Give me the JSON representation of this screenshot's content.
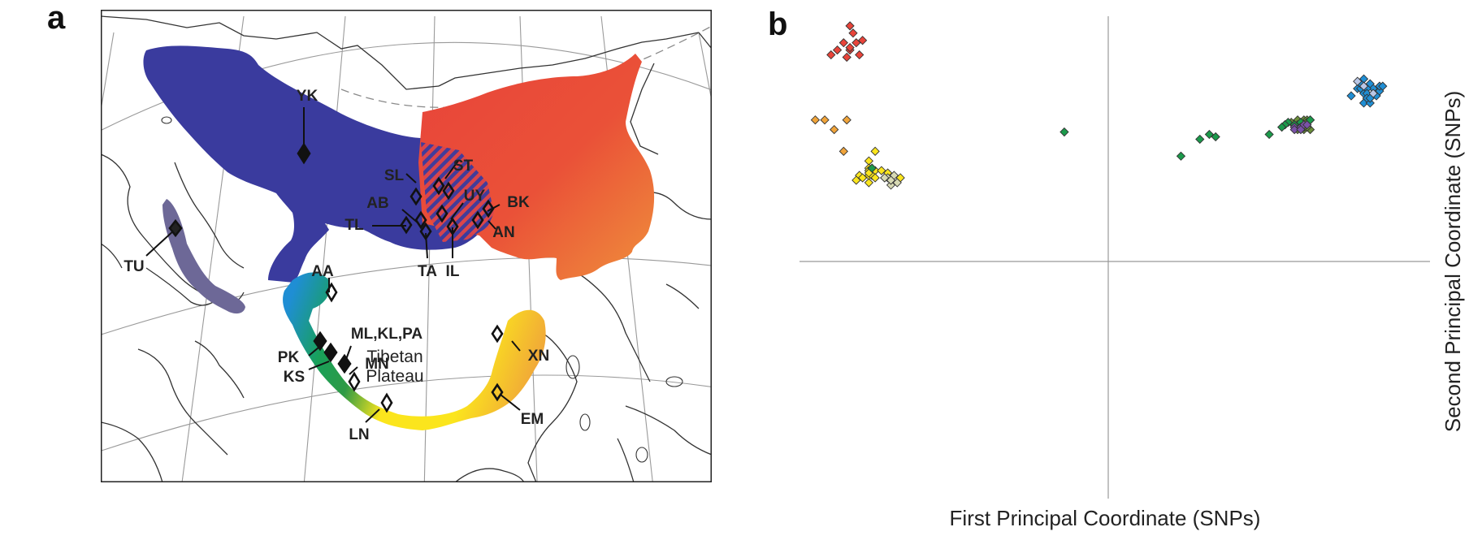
{
  "panels": {
    "a": "a",
    "b": "b"
  },
  "map": {
    "region_label": [
      "Tibetan",
      "Plateau"
    ],
    "colors": {
      "north": "#3a3b9e",
      "east": "#e8443a",
      "east_south": "#ef8a3c",
      "americas": "#6d6897",
      "west": "#1f8ed4",
      "green": "#1b9a4b",
      "yellow": "#fbe51d",
      "orange": "#f0a43a"
    },
    "sites": [
      {
        "code": "YK",
        "marker": "filled"
      },
      {
        "code": "SL",
        "marker": "open"
      },
      {
        "code": "ST",
        "marker": "open"
      },
      {
        "code": "UY",
        "marker": "open"
      },
      {
        "code": "BK",
        "marker": "open"
      },
      {
        "code": "AB",
        "marker": "open"
      },
      {
        "code": "TL",
        "marker": "open"
      },
      {
        "code": "AN",
        "marker": "open"
      },
      {
        "code": "TA",
        "marker": "open"
      },
      {
        "code": "IL",
        "marker": "open"
      },
      {
        "code": "TU",
        "marker": "filled"
      },
      {
        "code": "AA",
        "marker": "open"
      },
      {
        "code": "ML,KL,PA",
        "marker": "filled"
      },
      {
        "code": "PK",
        "marker": "filled"
      },
      {
        "code": "KS",
        "marker": "filled"
      },
      {
        "code": "MN",
        "marker": "open"
      },
      {
        "code": "LN",
        "marker": "open"
      },
      {
        "code": "XN",
        "marker": "open"
      },
      {
        "code": "EM",
        "marker": "open"
      }
    ]
  },
  "chart_data": {
    "type": "scatter",
    "xlabel": "First Principal Coordinate (SNPs)",
    "ylabel": "Second  Principal Coordinate (SNPs)",
    "xlim": [
      -1,
      1
    ],
    "ylim": [
      -1,
      1
    ],
    "grid": false,
    "marker": "diamond",
    "points": [
      {
        "x": -0.84,
        "y": 0.86,
        "c": "#e8443a"
      },
      {
        "x": -0.83,
        "y": 0.93,
        "c": "#e8443a"
      },
      {
        "x": -0.82,
        "y": 0.89,
        "c": "#e8443a"
      },
      {
        "x": -0.86,
        "y": 0.89,
        "c": "#e8443a"
      },
      {
        "x": -0.8,
        "y": 0.9,
        "c": "#e8443a"
      },
      {
        "x": -0.81,
        "y": 0.84,
        "c": "#e8443a"
      },
      {
        "x": -0.85,
        "y": 0.83,
        "c": "#e8443a"
      },
      {
        "x": -0.84,
        "y": 0.87,
        "c": "#e8443a"
      },
      {
        "x": -0.9,
        "y": 0.84,
        "c": "#e8443a"
      },
      {
        "x": -0.84,
        "y": 0.96,
        "c": "#e8443a"
      },
      {
        "x": -0.88,
        "y": 0.86,
        "c": "#e8443a"
      },
      {
        "x": 0.77,
        "y": 0.7,
        "c": "#1f8ed4"
      },
      {
        "x": 0.78,
        "y": 0.7,
        "c": "#1f8ed4"
      },
      {
        "x": 0.79,
        "y": 0.74,
        "c": "#1f8ed4"
      },
      {
        "x": 0.78,
        "y": 0.72,
        "c": "#1f8ed4"
      },
      {
        "x": 0.81,
        "y": 0.72,
        "c": "#1f8ed4"
      },
      {
        "x": 0.79,
        "y": 0.68,
        "c": "#1f8ed4"
      },
      {
        "x": 0.8,
        "y": 0.66,
        "c": "#1f8ed4"
      },
      {
        "x": 0.82,
        "y": 0.7,
        "c": "#1f8ed4"
      },
      {
        "x": 0.83,
        "y": 0.67,
        "c": "#1f8ed4"
      },
      {
        "x": 0.79,
        "y": 0.64,
        "c": "#1f8ed4"
      },
      {
        "x": 0.84,
        "y": 0.69,
        "c": "#1f8ed4"
      },
      {
        "x": 0.8,
        "y": 0.7,
        "c": "#1f8ed4"
      },
      {
        "x": 0.84,
        "y": 0.71,
        "c": "#1f8ed4"
      },
      {
        "x": 0.81,
        "y": 0.64,
        "c": "#1f8ed4"
      },
      {
        "x": 0.75,
        "y": 0.67,
        "c": "#1f8ed4"
      },
      {
        "x": 0.8,
        "y": 0.68,
        "c": "#1f8ed4"
      },
      {
        "x": 0.85,
        "y": 0.71,
        "c": "#1f8ed4"
      },
      {
        "x": 0.8,
        "y": 0.66,
        "c": "#1f8ed4"
      },
      {
        "x": 0.81,
        "y": 0.66,
        "c": "#1f8ed4"
      },
      {
        "x": 0.59,
        "y": 0.56,
        "c": "#6b8e3a"
      },
      {
        "x": 0.6,
        "y": 0.57,
        "c": "#6b8e3a"
      },
      {
        "x": 0.61,
        "y": 0.57,
        "c": "#6b8e3a"
      },
      {
        "x": 0.62,
        "y": 0.57,
        "c": "#6b8e3a"
      },
      {
        "x": 0.6,
        "y": 0.53,
        "c": "#6b8e3a"
      },
      {
        "x": 0.61,
        "y": 0.56,
        "c": "#6b8e3a"
      },
      {
        "x": 0.62,
        "y": 0.53,
        "c": "#6b8e3a"
      },
      {
        "x": 0.61,
        "y": 0.55,
        "c": "#6b8e3a"
      },
      {
        "x": 0.58,
        "y": 0.53,
        "c": "#6b8e3a"
      },
      {
        "x": 0.58,
        "y": 0.57,
        "c": "#6b8e3a"
      },
      {
        "x": 0.6,
        "y": 0.54,
        "c": "#6b8e3a"
      },
      {
        "x": 0.61,
        "y": 0.54,
        "c": "#6b8e3a"
      },
      {
        "x": 0.6,
        "y": 0.54,
        "c": "#6b8e3a"
      },
      {
        "x": 0.56,
        "y": 0.56,
        "c": "#6b8e3a"
      },
      {
        "x": 0.6,
        "y": 0.55,
        "c": "#6b8e3a"
      },
      {
        "x": 0.3,
        "y": 0.51,
        "c": "#1b9a4b"
      },
      {
        "x": 0.32,
        "y": 0.5,
        "c": "#1b9a4b"
      },
      {
        "x": 0.27,
        "y": 0.49,
        "c": "#1b9a4b"
      },
      {
        "x": 0.21,
        "y": 0.42,
        "c": "#1b9a4b"
      },
      {
        "x": 0.49,
        "y": 0.51,
        "c": "#1b9a4b"
      },
      {
        "x": -0.16,
        "y": 0.52,
        "c": "#1b9a4b"
      },
      {
        "x": 0.54,
        "y": 0.55,
        "c": "#1b9a4b"
      },
      {
        "x": 0.58,
        "y": 0.55,
        "c": "#1b9a4b"
      },
      {
        "x": 0.55,
        "y": 0.56,
        "c": "#1b9a4b"
      },
      {
        "x": 0.54,
        "y": 0.55,
        "c": "#1b9a4b"
      },
      {
        "x": 0.53,
        "y": 0.54,
        "c": "#1b9a4b"
      },
      {
        "x": 0.59,
        "y": 0.56,
        "c": "#1b9a4b"
      },
      {
        "x": 0.57,
        "y": 0.55,
        "c": "#1b9a4b"
      },
      {
        "x": 0.62,
        "y": 0.57,
        "c": "#1b9a4b"
      },
      {
        "x": 0.57,
        "y": 0.54,
        "c": "#7a52a8"
      },
      {
        "x": 0.59,
        "y": 0.54,
        "c": "#7a52a8"
      },
      {
        "x": 0.6,
        "y": 0.55,
        "c": "#7a52a8"
      },
      {
        "x": 0.57,
        "y": 0.53,
        "c": "#7a52a8"
      },
      {
        "x": 0.61,
        "y": 0.55,
        "c": "#7a52a8"
      },
      {
        "x": 0.59,
        "y": 0.53,
        "c": "#7a52a8"
      },
      {
        "x": 0.82,
        "y": 0.68,
        "c": "#b9c7e6"
      },
      {
        "x": 0.77,
        "y": 0.73,
        "c": "#b9c7e6"
      },
      {
        "x": 0.79,
        "y": 0.71,
        "c": "#b9c7e6"
      },
      {
        "x": -0.95,
        "y": 0.57,
        "c": "#f0a43a"
      },
      {
        "x": -0.92,
        "y": 0.57,
        "c": "#f0a43a"
      },
      {
        "x": -0.85,
        "y": 0.57,
        "c": "#f0a43a"
      },
      {
        "x": -0.89,
        "y": 0.53,
        "c": "#f0a43a"
      },
      {
        "x": -0.86,
        "y": 0.44,
        "c": "#f0a43a"
      },
      {
        "x": -0.78,
        "y": 0.4,
        "c": "#fbe51d"
      },
      {
        "x": -0.76,
        "y": 0.44,
        "c": "#fbe51d"
      },
      {
        "x": -0.78,
        "y": 0.31,
        "c": "#fbe51d"
      },
      {
        "x": -0.78,
        "y": 0.37,
        "c": "#fbe51d"
      },
      {
        "x": -0.78,
        "y": 0.36,
        "c": "#fbe51d"
      },
      {
        "x": -0.77,
        "y": 0.37,
        "c": "#fbe51d"
      },
      {
        "x": -0.81,
        "y": 0.34,
        "c": "#fbe51d"
      },
      {
        "x": -0.76,
        "y": 0.36,
        "c": "#fbe51d"
      },
      {
        "x": -0.78,
        "y": 0.34,
        "c": "#fbe51d"
      },
      {
        "x": -0.77,
        "y": 0.34,
        "c": "#fbe51d"
      },
      {
        "x": -0.74,
        "y": 0.36,
        "c": "#fbe51d"
      },
      {
        "x": -0.72,
        "y": 0.34,
        "c": "#fbe51d"
      },
      {
        "x": -0.73,
        "y": 0.33,
        "c": "#fbe51d"
      },
      {
        "x": -0.8,
        "y": 0.33,
        "c": "#fbe51d"
      },
      {
        "x": -0.82,
        "y": 0.32,
        "c": "#fbe51d"
      },
      {
        "x": -0.76,
        "y": 0.33,
        "c": "#fbe51d"
      },
      {
        "x": -0.78,
        "y": 0.35,
        "c": "#fbe51d"
      },
      {
        "x": -0.68,
        "y": 0.33,
        "c": "#fbe51d"
      },
      {
        "x": -0.72,
        "y": 0.35,
        "c": "#fbe51d"
      },
      {
        "x": -0.71,
        "y": 0.33,
        "c": "#fbe51d"
      },
      {
        "x": -0.72,
        "y": 0.33,
        "c": "#d7d9b4"
      },
      {
        "x": -0.69,
        "y": 0.31,
        "c": "#d7d9b4"
      },
      {
        "x": -0.7,
        "y": 0.34,
        "c": "#d7d9b4"
      },
      {
        "x": -0.71,
        "y": 0.3,
        "c": "#d7d9b4"
      },
      {
        "x": -0.73,
        "y": 0.33,
        "c": "#d7d9b4"
      },
      {
        "x": -0.71,
        "y": 0.32,
        "c": "#d7d9b4"
      },
      {
        "x": -0.77,
        "y": 0.37,
        "c": "#1b9a4b"
      }
    ]
  }
}
